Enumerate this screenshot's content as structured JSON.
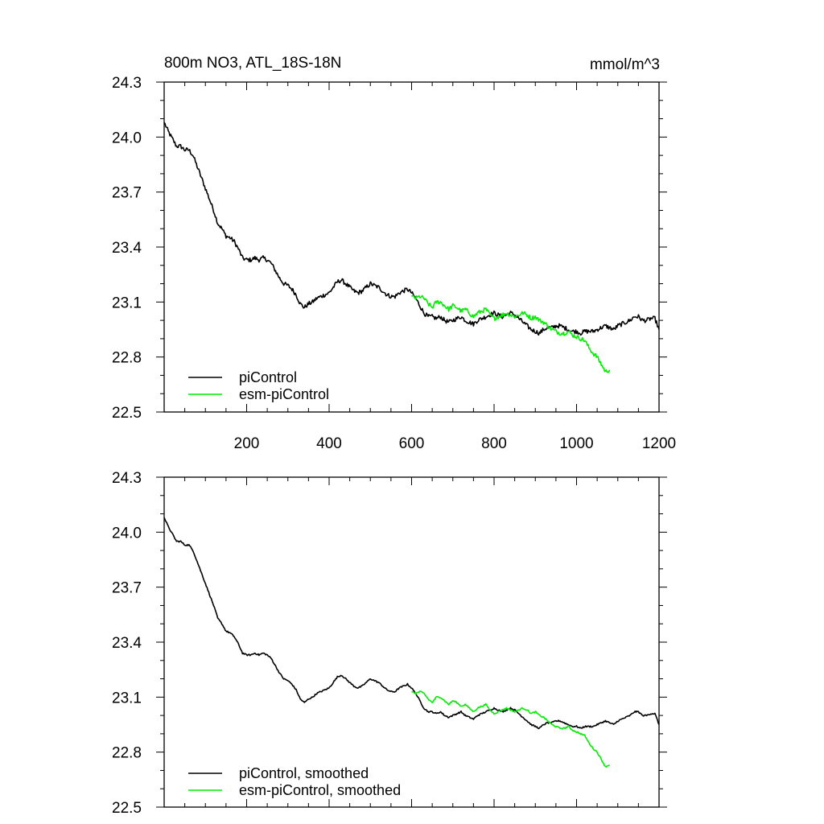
{
  "colors": {
    "piControl": "#000000",
    "esm": "#00ee00",
    "axis": "#000000",
    "background": "#ffffff"
  },
  "chart_data": [
    {
      "type": "line",
      "title": "800m NO3, ATL_18S-18N",
      "units": "mmol/m^3",
      "xlabel": "",
      "ylabel": "",
      "xlim": [
        0,
        1200
      ],
      "ylim": [
        22.5,
        24.3
      ],
      "x_ticks": [
        200,
        400,
        600,
        800,
        1000,
        1200
      ],
      "x_tick_labels": [
        "200",
        "400",
        "600",
        "800",
        "1000",
        "1200"
      ],
      "y_ticks": [
        22.5,
        22.8,
        23.1,
        23.4,
        23.7,
        24.0,
        24.3
      ],
      "y_tick_labels": [
        "22.5",
        "22.8",
        "23.1",
        "23.4",
        "23.7",
        "24.0",
        "24.3"
      ],
      "legend_position": "bottom-left",
      "series": [
        {
          "name": "piControl",
          "color": "#000000",
          "noise": 0.012,
          "x": [
            0,
            10,
            20,
            30,
            40,
            50,
            60,
            70,
            80,
            90,
            100,
            110,
            120,
            130,
            140,
            150,
            160,
            170,
            180,
            190,
            200,
            210,
            220,
            230,
            240,
            250,
            260,
            270,
            280,
            290,
            300,
            310,
            320,
            330,
            340,
            350,
            360,
            370,
            380,
            390,
            400,
            410,
            420,
            430,
            440,
            450,
            460,
            470,
            480,
            490,
            500,
            510,
            520,
            530,
            540,
            550,
            560,
            570,
            580,
            590,
            600,
            610,
            620,
            630,
            640,
            650,
            660,
            670,
            680,
            690,
            700,
            710,
            720,
            730,
            740,
            750,
            760,
            770,
            780,
            790,
            800,
            810,
            820,
            830,
            840,
            850,
            860,
            870,
            880,
            890,
            900,
            910,
            920,
            930,
            940,
            950,
            960,
            970,
            980,
            990,
            1000,
            1010,
            1020,
            1030,
            1040,
            1050,
            1060,
            1070,
            1080,
            1090,
            1100,
            1110,
            1120,
            1130,
            1140,
            1150,
            1160,
            1170,
            1180,
            1190,
            1200
          ],
          "values": [
            24.08,
            24.03,
            23.99,
            23.95,
            23.95,
            23.93,
            23.93,
            23.9,
            23.84,
            23.78,
            23.72,
            23.66,
            23.6,
            23.53,
            23.5,
            23.46,
            23.45,
            23.43,
            23.39,
            23.34,
            23.33,
            23.33,
            23.34,
            23.33,
            23.34,
            23.33,
            23.31,
            23.27,
            23.23,
            23.2,
            23.19,
            23.17,
            23.14,
            23.09,
            23.07,
            23.09,
            23.1,
            23.12,
            23.13,
            23.14,
            23.15,
            23.18,
            23.21,
            23.22,
            23.2,
            23.18,
            23.16,
            23.15,
            23.16,
            23.18,
            23.2,
            23.19,
            23.18,
            23.16,
            23.14,
            23.13,
            23.13,
            23.15,
            23.16,
            23.17,
            23.15,
            23.12,
            23.08,
            23.04,
            23.02,
            23.02,
            23.01,
            23.02,
            23.0,
            22.99,
            23.0,
            23.01,
            23.02,
            23.0,
            22.99,
            22.98,
            23.0,
            23.01,
            23.02,
            23.03,
            23.04,
            23.03,
            23.02,
            23.03,
            23.04,
            23.03,
            23.01,
            22.99,
            22.97,
            22.95,
            22.94,
            22.93,
            22.95,
            22.96,
            22.96,
            22.97,
            22.97,
            22.96,
            22.95,
            22.94,
            22.94,
            22.93,
            22.94,
            22.94,
            22.94,
            22.95,
            22.96,
            22.97,
            22.96,
            22.95,
            22.97,
            22.98,
            22.99,
            23.0,
            23.02,
            23.02,
            23.0,
            23.0,
            23.01,
            23.01,
            22.95
          ]
        },
        {
          "name": "esm-piControl",
          "color": "#00ee00",
          "noise": 0.012,
          "x": [
            600,
            610,
            620,
            630,
            640,
            650,
            660,
            670,
            680,
            690,
            700,
            710,
            720,
            730,
            740,
            750,
            760,
            770,
            780,
            790,
            800,
            810,
            820,
            830,
            840,
            850,
            860,
            870,
            880,
            890,
            900,
            910,
            920,
            930,
            940,
            950,
            960,
            970,
            980,
            990,
            1000,
            1010,
            1020,
            1030,
            1040,
            1050,
            1060,
            1070,
            1080
          ],
          "values": [
            23.13,
            23.12,
            23.13,
            23.12,
            23.09,
            23.07,
            23.1,
            23.1,
            23.08,
            23.06,
            23.08,
            23.07,
            23.05,
            23.06,
            23.04,
            23.02,
            23.04,
            23.05,
            23.06,
            23.03,
            23.01,
            23.02,
            23.03,
            23.04,
            23.03,
            23.02,
            23.03,
            23.04,
            23.03,
            23.01,
            23.02,
            23.0,
            22.99,
            22.97,
            22.95,
            22.94,
            22.93,
            22.93,
            22.94,
            22.92,
            22.91,
            22.9,
            22.89,
            22.85,
            22.82,
            22.8,
            22.76,
            22.72,
            22.73
          ]
        }
      ]
    },
    {
      "type": "line",
      "title": "",
      "xlabel": "",
      "ylabel": "",
      "xlim": [
        0,
        1200
      ],
      "ylim": [
        22.5,
        24.3
      ],
      "y_ticks": [
        22.5,
        22.8,
        23.1,
        23.4,
        23.7,
        24.0,
        24.3
      ],
      "y_tick_labels": [
        "22.5",
        "22.8",
        "23.1",
        "23.4",
        "23.7",
        "24.0",
        "24.3"
      ],
      "legend_position": "bottom-left",
      "series": [
        {
          "name": "piControl, smoothed",
          "color": "#000000",
          "noise": 0.004,
          "x": [
            0,
            10,
            20,
            30,
            40,
            50,
            60,
            70,
            80,
            90,
            100,
            110,
            120,
            130,
            140,
            150,
            160,
            170,
            180,
            190,
            200,
            210,
            220,
            230,
            240,
            250,
            260,
            270,
            280,
            290,
            300,
            310,
            320,
            330,
            340,
            350,
            360,
            370,
            380,
            390,
            400,
            410,
            420,
            430,
            440,
            450,
            460,
            470,
            480,
            490,
            500,
            510,
            520,
            530,
            540,
            550,
            560,
            570,
            580,
            590,
            600,
            610,
            620,
            630,
            640,
            650,
            660,
            670,
            680,
            690,
            700,
            710,
            720,
            730,
            740,
            750,
            760,
            770,
            780,
            790,
            800,
            810,
            820,
            830,
            840,
            850,
            860,
            870,
            880,
            890,
            900,
            910,
            920,
            930,
            940,
            950,
            960,
            970,
            980,
            990,
            1000,
            1010,
            1020,
            1030,
            1040,
            1050,
            1060,
            1070,
            1080,
            1090,
            1100,
            1110,
            1120,
            1130,
            1140,
            1150,
            1160,
            1170,
            1180,
            1190,
            1200
          ],
          "values": [
            24.08,
            24.03,
            23.99,
            23.95,
            23.95,
            23.93,
            23.93,
            23.9,
            23.84,
            23.78,
            23.72,
            23.66,
            23.6,
            23.53,
            23.5,
            23.46,
            23.45,
            23.43,
            23.39,
            23.34,
            23.33,
            23.33,
            23.34,
            23.33,
            23.34,
            23.33,
            23.31,
            23.27,
            23.23,
            23.2,
            23.19,
            23.17,
            23.14,
            23.09,
            23.07,
            23.09,
            23.1,
            23.12,
            23.13,
            23.14,
            23.15,
            23.18,
            23.21,
            23.22,
            23.2,
            23.18,
            23.16,
            23.15,
            23.16,
            23.18,
            23.2,
            23.19,
            23.18,
            23.16,
            23.14,
            23.13,
            23.13,
            23.15,
            23.16,
            23.17,
            23.15,
            23.12,
            23.08,
            23.04,
            23.02,
            23.02,
            23.01,
            23.02,
            23.0,
            22.99,
            23.0,
            23.01,
            23.02,
            23.0,
            22.99,
            22.98,
            23.0,
            23.01,
            23.02,
            23.03,
            23.04,
            23.03,
            23.02,
            23.03,
            23.04,
            23.03,
            23.01,
            22.99,
            22.97,
            22.95,
            22.94,
            22.93,
            22.95,
            22.96,
            22.96,
            22.97,
            22.97,
            22.96,
            22.95,
            22.94,
            22.94,
            22.93,
            22.94,
            22.94,
            22.94,
            22.95,
            22.96,
            22.97,
            22.96,
            22.95,
            22.97,
            22.98,
            22.99,
            23.0,
            23.02,
            23.02,
            23.0,
            23.0,
            23.01,
            23.01,
            22.95
          ]
        },
        {
          "name": "esm-piControl, smoothed",
          "color": "#00ee00",
          "noise": 0.004,
          "x": [
            600,
            610,
            620,
            630,
            640,
            650,
            660,
            670,
            680,
            690,
            700,
            710,
            720,
            730,
            740,
            750,
            760,
            770,
            780,
            790,
            800,
            810,
            820,
            830,
            840,
            850,
            860,
            870,
            880,
            890,
            900,
            910,
            920,
            930,
            940,
            950,
            960,
            970,
            980,
            990,
            1000,
            1010,
            1020,
            1030,
            1040,
            1050,
            1060,
            1070,
            1080
          ],
          "values": [
            23.13,
            23.12,
            23.13,
            23.12,
            23.09,
            23.07,
            23.1,
            23.1,
            23.08,
            23.06,
            23.08,
            23.07,
            23.05,
            23.06,
            23.04,
            23.02,
            23.04,
            23.05,
            23.06,
            23.03,
            23.01,
            23.02,
            23.03,
            23.04,
            23.03,
            23.02,
            23.03,
            23.04,
            23.03,
            23.01,
            23.02,
            23.0,
            22.99,
            22.97,
            22.95,
            22.94,
            22.93,
            22.93,
            22.94,
            22.92,
            22.91,
            22.9,
            22.89,
            22.85,
            22.82,
            22.8,
            22.76,
            22.72,
            22.73
          ]
        }
      ]
    }
  ]
}
